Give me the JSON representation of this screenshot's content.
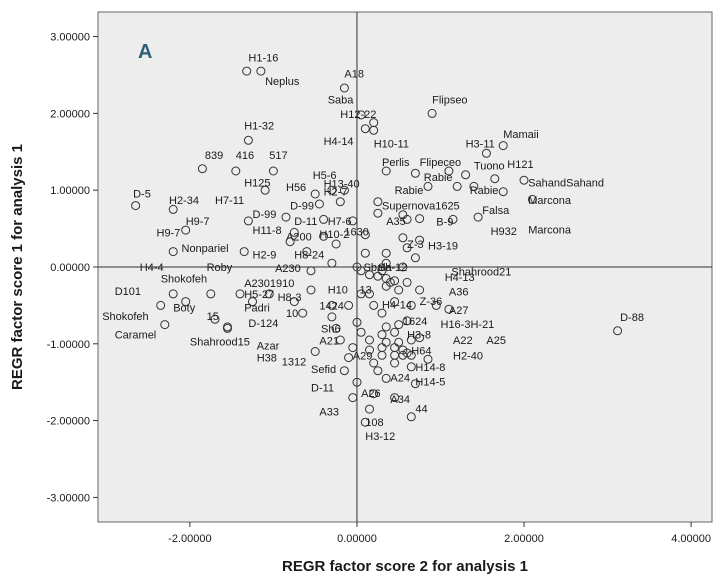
{
  "chart_data": {
    "type": "scatter",
    "panel_label": "A",
    "xlabel": "REGR factor score   2 for analysis 1",
    "ylabel": "REGR factor score   1 for analysis 1",
    "xlim": [
      -3.1,
      4.25
    ],
    "ylim": [
      -3.32,
      3.32
    ],
    "x_ticks": [
      -2,
      0,
      2,
      4
    ],
    "x_tick_labels": [
      "-2.00000",
      "0.00000",
      "2.00000",
      "4.00000"
    ],
    "y_ticks": [
      3,
      2,
      1,
      0,
      -1,
      -2,
      -3
    ],
    "y_tick_labels": [
      "3.00000",
      "2.00000",
      "1.00000",
      "0.00000",
      "-1.00000",
      "-2.00000",
      "-3.00000"
    ],
    "reference_lines": {
      "x": 0,
      "y": 0
    },
    "plot_background": "#ededed",
    "marker_color": "#333333",
    "points": [
      [
        -1.32,
        2.55
      ],
      [
        -1.15,
        2.55
      ],
      [
        -0.15,
        2.33
      ],
      [
        0.05,
        1.98
      ],
      [
        0.2,
        1.88
      ],
      [
        0.1,
        1.8
      ],
      [
        0.2,
        1.78
      ],
      [
        0.9,
        2.0
      ],
      [
        -1.3,
        1.65
      ],
      [
        1.75,
        1.58
      ],
      [
        1.55,
        1.48
      ],
      [
        -1.85,
        1.28
      ],
      [
        -1.45,
        1.25
      ],
      [
        -1.0,
        1.25
      ],
      [
        0.35,
        1.25
      ],
      [
        0.7,
        1.22
      ],
      [
        1.1,
        1.25
      ],
      [
        1.3,
        1.2
      ],
      [
        1.65,
        1.15
      ],
      [
        2.0,
        1.13
      ],
      [
        1.2,
        1.05
      ],
      [
        0.85,
        1.05
      ],
      [
        1.4,
        1.05
      ],
      [
        1.75,
        0.98
      ],
      [
        2.1,
        0.88
      ],
      [
        -1.1,
        1.0
      ],
      [
        -0.5,
        0.95
      ],
      [
        -0.3,
        1.0
      ],
      [
        -0.15,
        1.0
      ],
      [
        -0.45,
        0.82
      ],
      [
        -0.2,
        0.85
      ],
      [
        0.25,
        0.85
      ],
      [
        -2.65,
        0.8
      ],
      [
        -2.2,
        0.75
      ],
      [
        0.25,
        0.7
      ],
      [
        0.55,
        0.68
      ],
      [
        -0.85,
        0.65
      ],
      [
        0.6,
        0.62
      ],
      [
        0.75,
        0.63
      ],
      [
        -1.3,
        0.6
      ],
      [
        -0.4,
        0.62
      ],
      [
        -0.05,
        0.6
      ],
      [
        1.15,
        0.62
      ],
      [
        1.45,
        0.65
      ],
      [
        -2.05,
        0.48
      ],
      [
        -0.75,
        0.45
      ],
      [
        -0.4,
        0.4
      ],
      [
        0.1,
        0.42
      ],
      [
        0.55,
        0.38
      ],
      [
        0.75,
        0.35
      ],
      [
        -0.8,
        0.33
      ],
      [
        -0.25,
        0.3
      ],
      [
        0.6,
        0.25
      ],
      [
        -2.2,
        0.2
      ],
      [
        -1.35,
        0.2
      ],
      [
        -0.6,
        0.2
      ],
      [
        0.1,
        0.18
      ],
      [
        0.35,
        0.18
      ],
      [
        0.7,
        0.12
      ],
      [
        -0.3,
        0.05
      ],
      [
        0.35,
        0.05
      ],
      [
        0.0,
        0.0
      ],
      [
        0.05,
        -0.05
      ],
      [
        0.3,
        -0.05
      ],
      [
        0.55,
        0.0
      ],
      [
        -0.55,
        -0.05
      ],
      [
        0.15,
        -0.1
      ],
      [
        0.25,
        -0.12
      ],
      [
        0.35,
        -0.15
      ],
      [
        0.45,
        -0.18
      ],
      [
        0.4,
        -0.2
      ],
      [
        0.6,
        -0.2
      ],
      [
        -2.2,
        -0.35
      ],
      [
        -1.75,
        -0.35
      ],
      [
        -1.4,
        -0.35
      ],
      [
        -1.05,
        -0.35
      ],
      [
        0.75,
        -0.3
      ],
      [
        -0.55,
        -0.3
      ],
      [
        0.35,
        -0.25
      ],
      [
        0.15,
        -0.35
      ],
      [
        0.5,
        -0.3
      ],
      [
        0.05,
        -0.35
      ],
      [
        -2.35,
        -0.5
      ],
      [
        -2.05,
        -0.45
      ],
      [
        -1.25,
        -0.45
      ],
      [
        -0.75,
        -0.45
      ],
      [
        -0.3,
        -0.5
      ],
      [
        -0.1,
        -0.5
      ],
      [
        0.2,
        -0.5
      ],
      [
        0.45,
        -0.45
      ],
      [
        0.65,
        -0.5
      ],
      [
        0.95,
        -0.5
      ],
      [
        1.1,
        -0.55
      ],
      [
        -2.3,
        -0.75
      ],
      [
        -1.7,
        -0.68
      ],
      [
        -1.55,
        -0.78
      ],
      [
        -1.55,
        -0.8
      ],
      [
        -0.65,
        -0.6
      ],
      [
        -0.3,
        -0.65
      ],
      [
        0.3,
        -0.6
      ],
      [
        0.35,
        -0.78
      ],
      [
        0.5,
        -0.75
      ],
      [
        0.6,
        -0.7
      ],
      [
        0.0,
        -0.72
      ],
      [
        -0.25,
        -0.8
      ],
      [
        0.05,
        -0.85
      ],
      [
        0.3,
        -0.88
      ],
      [
        0.45,
        -0.85
      ],
      [
        -0.2,
        -0.95
      ],
      [
        0.15,
        -0.95
      ],
      [
        0.35,
        -0.98
      ],
      [
        0.5,
        -0.98
      ],
      [
        0.65,
        -0.95
      ],
      [
        0.75,
        -0.92
      ],
      [
        -0.05,
        -1.05
      ],
      [
        0.15,
        -1.08
      ],
      [
        0.3,
        -1.05
      ],
      [
        0.45,
        -1.05
      ],
      [
        0.55,
        -1.08
      ],
      [
        0.6,
        -1.12
      ],
      [
        -0.5,
        -1.1
      ],
      [
        -0.1,
        -1.18
      ],
      [
        0.3,
        -1.15
      ],
      [
        0.45,
        -1.15
      ],
      [
        0.55,
        -1.15
      ],
      [
        0.65,
        -1.15
      ],
      [
        0.85,
        -1.2
      ],
      [
        0.2,
        -1.25
      ],
      [
        0.45,
        -1.25
      ],
      [
        0.65,
        -1.3
      ],
      [
        -0.15,
        -1.35
      ],
      [
        0.25,
        -1.35
      ],
      [
        0.0,
        -1.5
      ],
      [
        0.35,
        -1.45
      ],
      [
        0.7,
        -1.52
      ],
      [
        3.12,
        -0.83
      ],
      [
        -0.05,
        -1.7
      ],
      [
        0.2,
        -1.65
      ],
      [
        0.45,
        -1.7
      ],
      [
        0.15,
        -1.85
      ],
      [
        0.65,
        -1.95
      ],
      [
        0.1,
        -2.02
      ]
    ],
    "labels": [
      {
        "text": "H1-16",
        "x": -1.3,
        "y": 2.73
      },
      {
        "text": "Neplus",
        "x": -1.1,
        "y": 2.42
      },
      {
        "text": "A18",
        "x": -0.15,
        "y": 2.52
      },
      {
        "text": "Saba",
        "x": -0.35,
        "y": 2.18
      },
      {
        "text": "H12-22",
        "x": -0.2,
        "y": 1.99
      },
      {
        "text": "Flipseo",
        "x": 0.9,
        "y": 2.18
      },
      {
        "text": "H1-32",
        "x": -1.35,
        "y": 1.84
      },
      {
        "text": "H4-14",
        "x": -0.4,
        "y": 1.64
      },
      {
        "text": "H10-11",
        "x": 0.2,
        "y": 1.61
      },
      {
        "text": "H3-11",
        "x": 1.3,
        "y": 1.61
      },
      {
        "text": "Mamaii",
        "x": 1.75,
        "y": 1.73
      },
      {
        "text": "839",
        "x": -1.82,
        "y": 1.46
      },
      {
        "text": "416",
        "x": -1.45,
        "y": 1.46
      },
      {
        "text": "517",
        "x": -1.05,
        "y": 1.46
      },
      {
        "text": "H125",
        "x": -1.35,
        "y": 1.1
      },
      {
        "text": "Perlis",
        "x": 0.3,
        "y": 1.37
      },
      {
        "text": "Flipeceo",
        "x": 0.75,
        "y": 1.37
      },
      {
        "text": "Tuono",
        "x": 1.4,
        "y": 1.32
      },
      {
        "text": "H121",
        "x": 1.8,
        "y": 1.34
      },
      {
        "text": "H5-6",
        "x": -0.53,
        "y": 1.2
      },
      {
        "text": "H13-40",
        "x": -0.4,
        "y": 1.09
      },
      {
        "text": "Rabie",
        "x": 0.8,
        "y": 1.17
      },
      {
        "text": "SahandSahand",
        "x": 2.05,
        "y": 1.1
      },
      {
        "text": "H56",
        "x": -0.85,
        "y": 1.04
      },
      {
        "text": "H2-7",
        "x": -0.4,
        "y": 0.98
      },
      {
        "text": "Rabie",
        "x": 0.45,
        "y": 1.0
      },
      {
        "text": "Rabie",
        "x": 1.35,
        "y": 1.0
      },
      {
        "text": "D-5",
        "x": -2.68,
        "y": 0.96
      },
      {
        "text": "H2-34",
        "x": -2.25,
        "y": 0.87
      },
      {
        "text": "H7-11",
        "x": -1.7,
        "y": 0.87
      },
      {
        "text": "Marcona",
        "x": 2.05,
        "y": 0.87
      },
      {
        "text": "D-99",
        "x": -0.8,
        "y": 0.8
      },
      {
        "text": "Supernova1625",
        "x": 0.3,
        "y": 0.8
      },
      {
        "text": "Falsa",
        "x": 1.5,
        "y": 0.74
      },
      {
        "text": "D-99",
        "x": -1.25,
        "y": 0.69
      },
      {
        "text": "D-11",
        "x": -0.75,
        "y": 0.6
      },
      {
        "text": "H7-6",
        "x": -0.35,
        "y": 0.6
      },
      {
        "text": "A35",
        "x": 0.35,
        "y": 0.6
      },
      {
        "text": "B-9",
        "x": 0.95,
        "y": 0.59
      },
      {
        "text": "H9-7",
        "x": -2.05,
        "y": 0.6
      },
      {
        "text": "H11-8",
        "x": -1.25,
        "y": 0.48
      },
      {
        "text": "1630",
        "x": -0.15,
        "y": 0.46
      },
      {
        "text": "H932",
        "x": 1.6,
        "y": 0.47
      },
      {
        "text": "Marcona",
        "x": 2.05,
        "y": 0.49
      },
      {
        "text": "H9-7",
        "x": -2.4,
        "y": 0.45
      },
      {
        "text": "A200",
        "x": -0.85,
        "y": 0.4
      },
      {
        "text": "H10-2",
        "x": -0.45,
        "y": 0.43
      },
      {
        "text": "Z-3",
        "x": 0.6,
        "y": 0.3
      },
      {
        "text": "H3-19",
        "x": 0.85,
        "y": 0.28
      },
      {
        "text": "Nonpariel",
        "x": -2.1,
        "y": 0.25
      },
      {
        "text": "H2-9",
        "x": -1.25,
        "y": 0.16
      },
      {
        "text": "H8-24",
        "x": -0.75,
        "y": 0.16
      },
      {
        "text": "H4-4",
        "x": -2.6,
        "y": 0.0
      },
      {
        "text": "Roby",
        "x": -1.8,
        "y": 0.0
      },
      {
        "text": "A230",
        "x": -0.98,
        "y": -0.01
      },
      {
        "text": "Sbala",
        "x": 0.08,
        "y": 0.0
      },
      {
        "text": "Sh-12",
        "x": 0.25,
        "y": 0.0
      },
      {
        "text": "Shahrood21",
        "x": 1.13,
        "y": -0.06
      },
      {
        "text": "Shokofeh",
        "x": -2.35,
        "y": -0.15
      },
      {
        "text": "H4-13",
        "x": 1.05,
        "y": -0.13
      },
      {
        "text": "D101",
        "x": -2.9,
        "y": -0.31
      },
      {
        "text": "A2301910",
        "x": -1.35,
        "y": -0.21
      },
      {
        "text": "H10",
        "x": -0.35,
        "y": -0.29
      },
      {
        "text": "13",
        "x": 0.03,
        "y": -0.29
      },
      {
        "text": "A36",
        "x": 1.1,
        "y": -0.32
      },
      {
        "text": "H5-27",
        "x": -1.35,
        "y": -0.35
      },
      {
        "text": "H8-3",
        "x": -0.95,
        "y": -0.39
      },
      {
        "text": "1424",
        "x": -0.45,
        "y": -0.5
      },
      {
        "text": "H4-14",
        "x": 0.3,
        "y": -0.49
      },
      {
        "text": "Z-36",
        "x": 0.75,
        "y": -0.44
      },
      {
        "text": "Boty",
        "x": -2.2,
        "y": -0.53
      },
      {
        "text": "Padri",
        "x": -1.35,
        "y": -0.53
      },
      {
        "text": "10",
        "x": -0.85,
        "y": -0.6
      },
      {
        "text": "A27",
        "x": 1.1,
        "y": -0.56
      },
      {
        "text": "Shokofeh",
        "x": -3.05,
        "y": -0.64
      },
      {
        "text": "15",
        "x": -1.8,
        "y": -0.64
      },
      {
        "text": "1624",
        "x": 0.55,
        "y": -0.7
      },
      {
        "text": "D-124",
        "x": -1.3,
        "y": -0.73
      },
      {
        "text": "Sh6",
        "x": -0.43,
        "y": -0.8
      },
      {
        "text": "H16-3H-21",
        "x": 1.0,
        "y": -0.74
      },
      {
        "text": "Caramel",
        "x": -2.9,
        "y": -0.88
      },
      {
        "text": "H3-8",
        "x": 0.6,
        "y": -0.88
      },
      {
        "text": "A22",
        "x": 1.15,
        "y": -0.95
      },
      {
        "text": "A25",
        "x": 1.55,
        "y": -0.95
      },
      {
        "text": "Shahrood15",
        "x": -2.0,
        "y": -0.97
      },
      {
        "text": "A21",
        "x": -0.45,
        "y": -0.96
      },
      {
        "text": "D-88",
        "x": 3.15,
        "y": -0.65
      },
      {
        "text": "Azar",
        "x": -1.2,
        "y": -1.02
      },
      {
        "text": "H64",
        "x": 0.65,
        "y": -1.09
      },
      {
        "text": "A29",
        "x": -0.05,
        "y": -1.15
      },
      {
        "text": "H2-40",
        "x": 1.15,
        "y": -1.15
      },
      {
        "text": "H38",
        "x": -1.2,
        "y": -1.18
      },
      {
        "text": "1312",
        "x": -0.9,
        "y": -1.23
      },
      {
        "text": "Sefid",
        "x": -0.55,
        "y": -1.33
      },
      {
        "text": "H14-8",
        "x": 0.7,
        "y": -1.3
      },
      {
        "text": "A24",
        "x": 0.4,
        "y": -1.44
      },
      {
        "text": "H14-5",
        "x": 0.7,
        "y": -1.49
      },
      {
        "text": "D-11",
        "x": -0.55,
        "y": -1.57
      },
      {
        "text": "A26",
        "x": 0.05,
        "y": -1.64
      },
      {
        "text": "A34",
        "x": 0.4,
        "y": -1.72
      },
      {
        "text": "A33",
        "x": -0.45,
        "y": -1.88
      },
      {
        "text": "44",
        "x": 0.7,
        "y": -1.84
      },
      {
        "text": "108",
        "x": 0.1,
        "y": -2.02
      },
      {
        "text": "H3-12",
        "x": 0.1,
        "y": -2.2
      }
    ]
  }
}
